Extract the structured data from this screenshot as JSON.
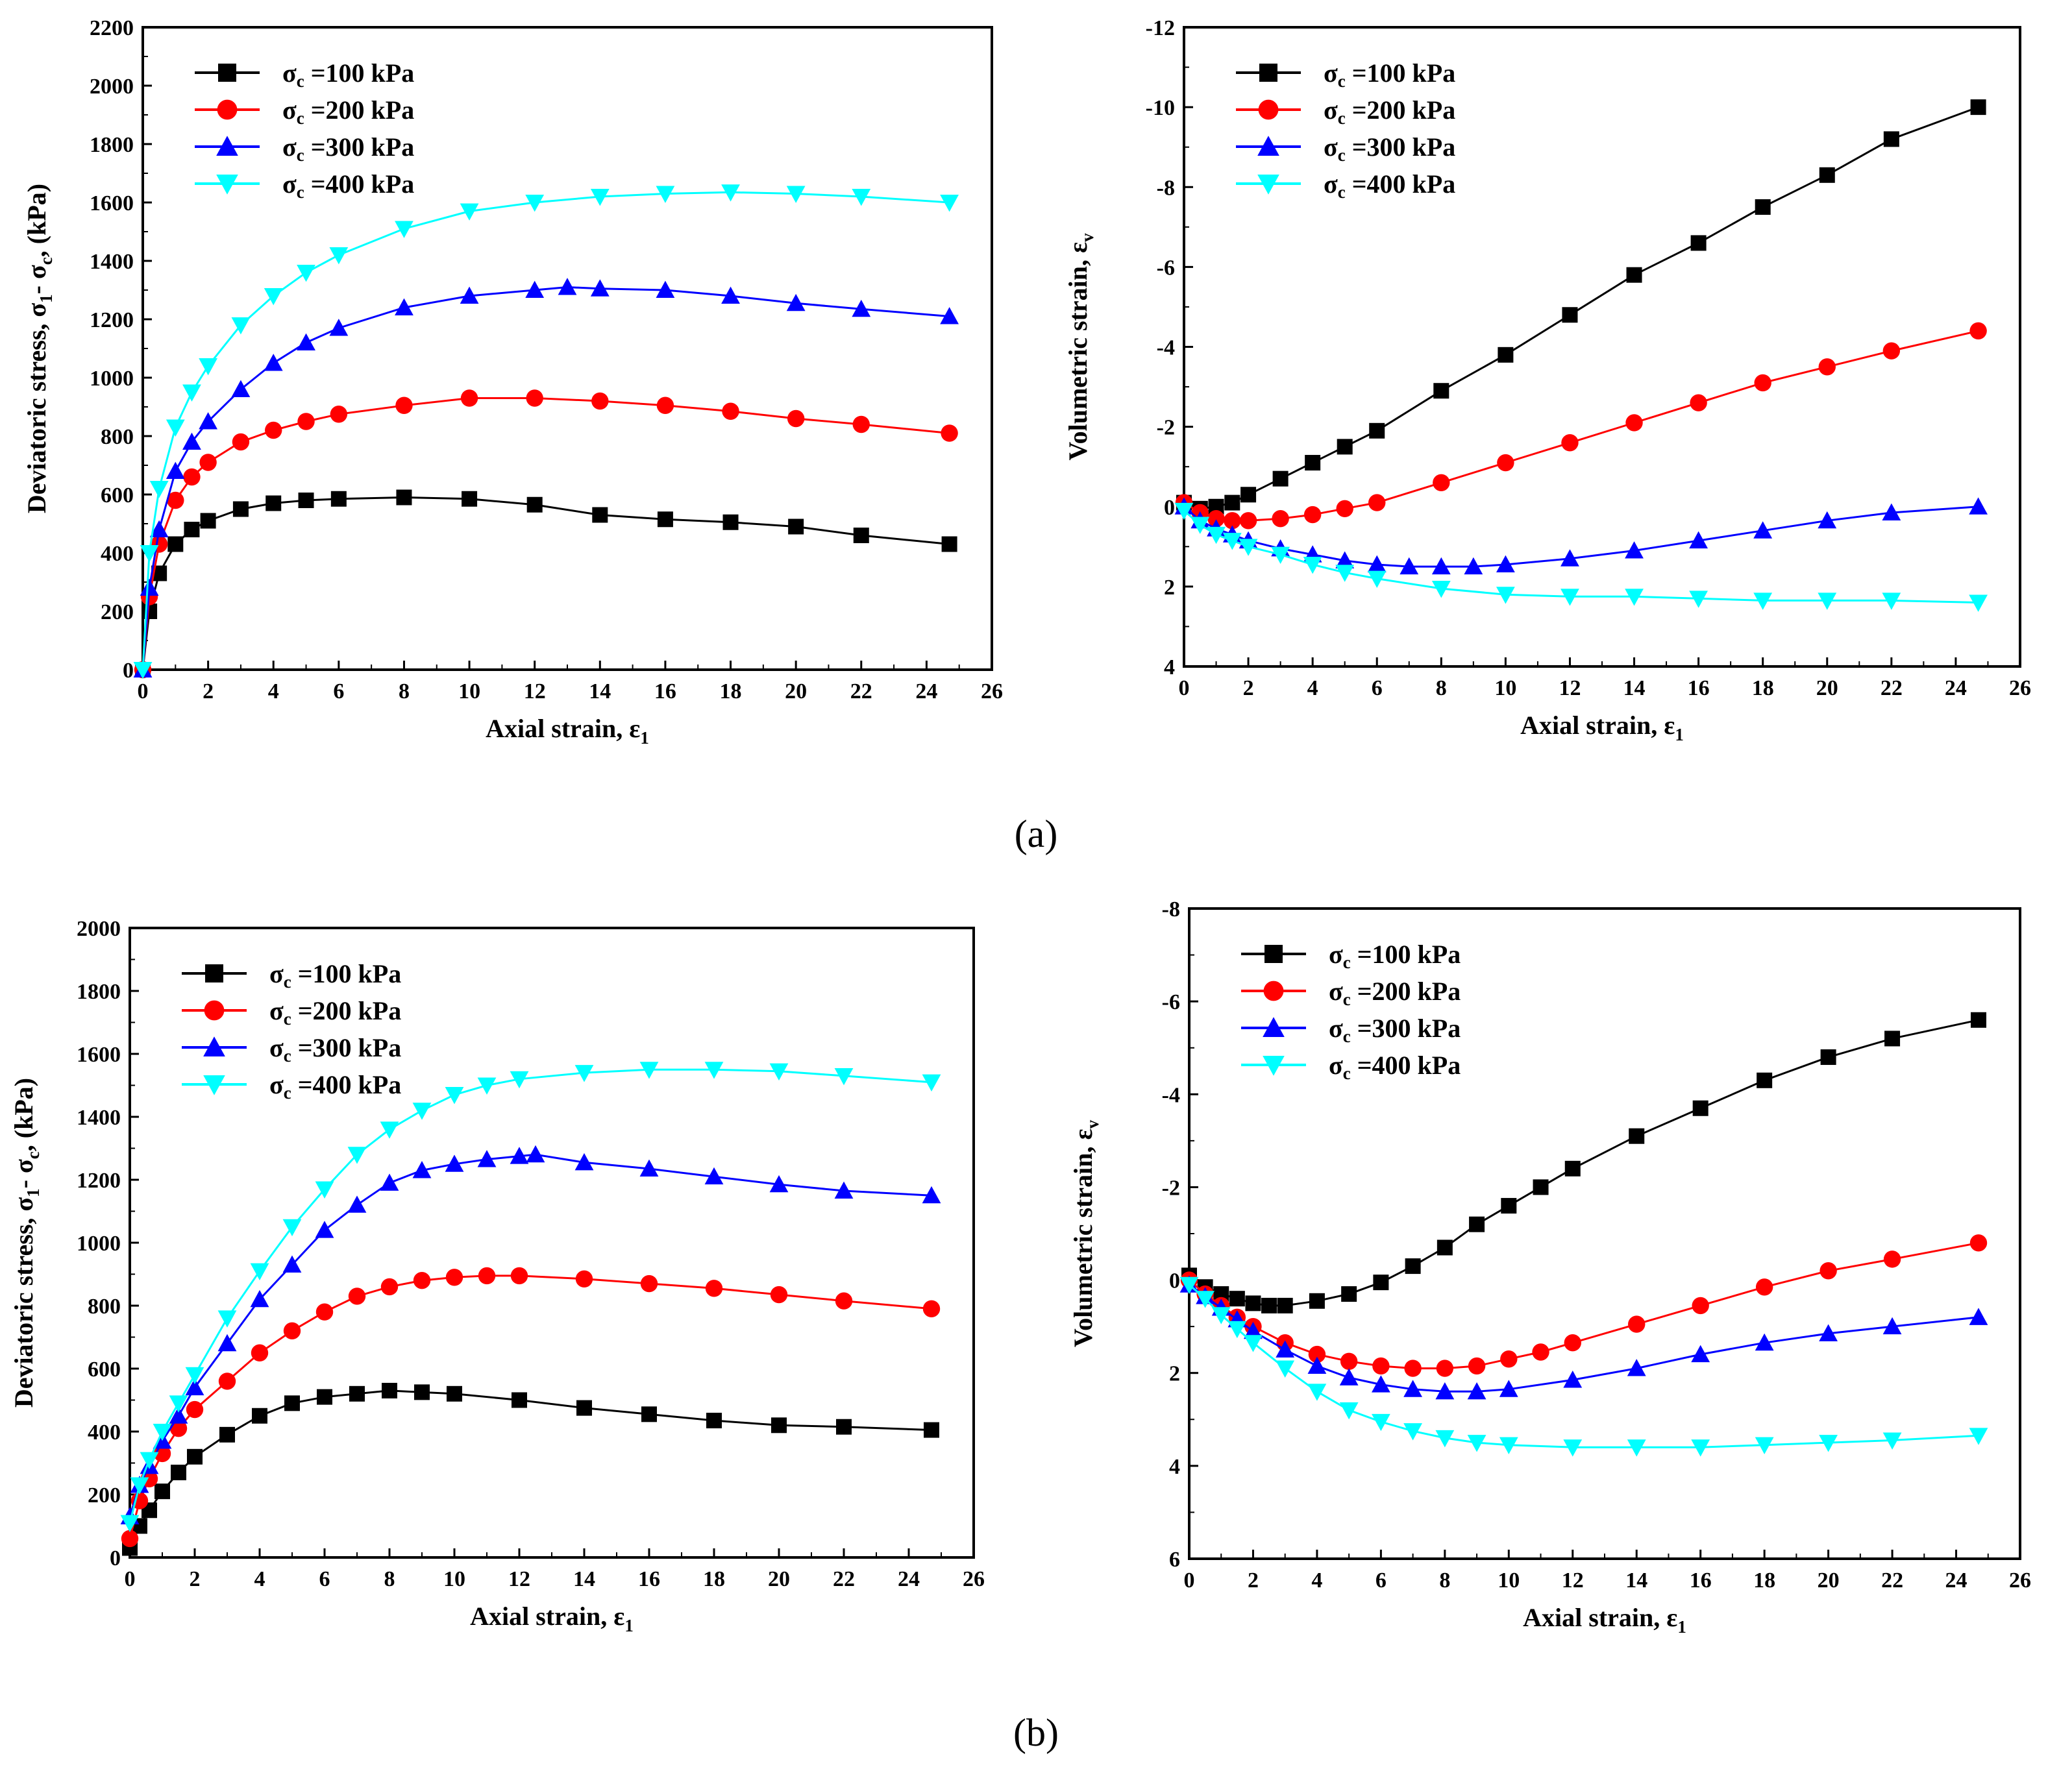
{
  "figure": {
    "captions": [
      "(a)",
      "(b)"
    ],
    "legend_symbol": "σ",
    "legend_subscript": "c",
    "legend_unit": "kPa",
    "series_colors": [
      "#000000",
      "#ff0000",
      "#0000ff",
      "#00ffff"
    ],
    "marker_shapes": [
      "square",
      "circle",
      "triangle-up",
      "triangle-down"
    ]
  },
  "chart_data": [
    {
      "id": "a-stress",
      "type": "line",
      "xlabel": "Axial strain, ε",
      "xlabel_sub": "1",
      "ylabel": "Deviatoric stress, σ",
      "ylabel_sub": "1",
      "ylabel_mid": "- σ",
      "ylabel_sub2": "c",
      "ylabel_tail": ",  (kPa)",
      "xlim": [
        0,
        26
      ],
      "ylim": [
        0,
        2200
      ],
      "xticks": [
        0,
        2,
        4,
        6,
        8,
        10,
        12,
        14,
        16,
        18,
        20,
        22,
        24,
        26
      ],
      "yticks": [
        0,
        200,
        400,
        600,
        800,
        1000,
        1200,
        1400,
        1600,
        1800,
        2000,
        2200
      ],
      "y_inverted": false,
      "legend_placement": "top-left",
      "series": [
        {
          "name": "σc =100 kPa",
          "legend_value": "=100 kPa",
          "color": "#000000",
          "marker": "square",
          "x": [
            0,
            0.2,
            0.5,
            1,
            1.5,
            2,
            3,
            4,
            5,
            6,
            8,
            10,
            12,
            14,
            16,
            18,
            20,
            22,
            24.7
          ],
          "values": [
            0,
            200,
            330,
            430,
            480,
            510,
            550,
            570,
            580,
            585,
            590,
            585,
            565,
            530,
            515,
            505,
            490,
            460,
            430
          ]
        },
        {
          "name": "σc =200 kPa",
          "legend_value": "=200 kPa",
          "color": "#ff0000",
          "marker": "circle",
          "x": [
            0,
            0.2,
            0.5,
            1,
            1.5,
            2,
            3,
            4,
            5,
            6,
            8,
            10,
            12,
            14,
            16,
            18,
            20,
            22,
            24.7
          ],
          "values": [
            0,
            250,
            430,
            580,
            660,
            710,
            780,
            820,
            850,
            875,
            905,
            930,
            930,
            920,
            905,
            885,
            860,
            840,
            810
          ]
        },
        {
          "name": "σc =300 kPa",
          "legend_value": "=300 kPa",
          "color": "#0000ff",
          "marker": "triangle-up",
          "x": [
            0,
            0.2,
            0.5,
            1,
            1.5,
            2,
            3,
            4,
            5,
            6,
            8,
            10,
            12,
            13,
            14,
            16,
            18,
            20,
            22,
            24.7
          ],
          "values": [
            0,
            280,
            480,
            680,
            780,
            850,
            960,
            1050,
            1120,
            1170,
            1240,
            1280,
            1300,
            1310,
            1305,
            1300,
            1280,
            1255,
            1235,
            1210
          ]
        },
        {
          "name": "σc =400 kPa",
          "legend_value": "=400 kPa",
          "color": "#00ffff",
          "marker": "triangle-down",
          "x": [
            0,
            0.2,
            0.5,
            1,
            1.5,
            2,
            3,
            4,
            5,
            6,
            8,
            10,
            12,
            14,
            16,
            18,
            20,
            22,
            24.7
          ],
          "values": [
            0,
            400,
            620,
            830,
            950,
            1040,
            1180,
            1280,
            1360,
            1420,
            1510,
            1570,
            1600,
            1620,
            1630,
            1635,
            1630,
            1620,
            1600
          ]
        }
      ]
    },
    {
      "id": "a-volumetric",
      "type": "line",
      "xlabel": "Axial strain, ε",
      "xlabel_sub": "1",
      "ylabel": "Volumetric strain, ε",
      "ylabel_sub": "v",
      "ylabel_mid": "",
      "ylabel_sub2": "",
      "ylabel_tail": "",
      "xlim": [
        0,
        26
      ],
      "ylim": [
        -12,
        4
      ],
      "xticks": [
        0,
        2,
        4,
        6,
        8,
        10,
        12,
        14,
        16,
        18,
        20,
        22,
        24,
        26
      ],
      "yticks": [
        -12,
        -10,
        -8,
        -6,
        -4,
        -2,
        0,
        2,
        4
      ],
      "y_inverted": true,
      "legend_placement": "top-left",
      "series": [
        {
          "name": "σc =100 kPa",
          "legend_value": "=100 kPa",
          "color": "#000000",
          "marker": "square",
          "x": [
            0,
            0.5,
            1,
            1.5,
            2,
            3,
            4,
            5,
            6,
            8,
            10,
            12,
            14,
            16,
            18,
            20,
            22,
            24.7
          ],
          "values": [
            -0.1,
            0.05,
            0.0,
            -0.1,
            -0.3,
            -0.7,
            -1.1,
            -1.5,
            -1.9,
            -2.9,
            -3.8,
            -4.8,
            -5.8,
            -6.6,
            -7.5,
            -8.3,
            -9.2,
            -10.0
          ]
        },
        {
          "name": "σc =200 kPa",
          "legend_value": "=200 kPa",
          "color": "#ff0000",
          "marker": "circle",
          "x": [
            0,
            0.5,
            1,
            1.5,
            2,
            3,
            4,
            5,
            6,
            8,
            10,
            12,
            14,
            16,
            18,
            20,
            22,
            24.7
          ],
          "values": [
            -0.1,
            0.15,
            0.3,
            0.35,
            0.35,
            0.3,
            0.2,
            0.05,
            -0.1,
            -0.6,
            -1.1,
            -1.6,
            -2.1,
            -2.6,
            -3.1,
            -3.5,
            -3.9,
            -4.4
          ]
        },
        {
          "name": "σc =300 kPa",
          "legend_value": "=300 kPa",
          "color": "#0000ff",
          "marker": "triangle-up",
          "x": [
            0,
            0.5,
            1,
            1.5,
            2,
            3,
            4,
            5,
            6,
            7,
            8,
            9,
            10,
            12,
            14,
            16,
            18,
            20,
            22,
            24.7
          ],
          "values": [
            0,
            0.35,
            0.55,
            0.7,
            0.85,
            1.05,
            1.2,
            1.35,
            1.45,
            1.5,
            1.5,
            1.5,
            1.45,
            1.3,
            1.1,
            0.85,
            0.6,
            0.35,
            0.15,
            0
          ]
        },
        {
          "name": "σc =400 kPa",
          "legend_value": "=400 kPa",
          "color": "#00ffff",
          "marker": "triangle-down",
          "x": [
            0,
            0.5,
            1,
            1.5,
            2,
            3,
            4,
            5,
            6,
            8,
            10,
            12,
            14,
            16,
            18,
            20,
            22,
            24.7
          ],
          "values": [
            0.1,
            0.45,
            0.7,
            0.85,
            1.0,
            1.2,
            1.45,
            1.65,
            1.8,
            2.05,
            2.2,
            2.25,
            2.25,
            2.3,
            2.35,
            2.35,
            2.35,
            2.4
          ]
        }
      ]
    },
    {
      "id": "b-stress",
      "type": "line",
      "xlabel": "Axial strain, ε",
      "xlabel_sub": "1",
      "ylabel": "Deviatoric stress, σ",
      "ylabel_sub": "1",
      "ylabel_mid": "- σ",
      "ylabel_sub2": "c",
      "ylabel_tail": ",  (kPa)",
      "xlim": [
        0,
        26
      ],
      "ylim": [
        0,
        2000
      ],
      "xticks": [
        0,
        2,
        4,
        6,
        8,
        10,
        12,
        14,
        16,
        18,
        20,
        22,
        24,
        26
      ],
      "yticks": [
        0,
        200,
        400,
        600,
        800,
        1000,
        1200,
        1400,
        1600,
        1800,
        2000
      ],
      "y_inverted": false,
      "legend_placement": "top-left",
      "series": [
        {
          "name": "σc =100 kPa",
          "legend_value": "=100 kPa",
          "color": "#000000",
          "marker": "square",
          "x": [
            0,
            0.3,
            0.6,
            1,
            1.5,
            2,
            3,
            4,
            5,
            6,
            7,
            8,
            9,
            10,
            12,
            14,
            16,
            18,
            20,
            22,
            24.7
          ],
          "values": [
            30,
            100,
            150,
            210,
            270,
            320,
            390,
            450,
            490,
            510,
            520,
            530,
            525,
            520,
            500,
            475,
            455,
            435,
            420,
            415,
            405
          ]
        },
        {
          "name": "σc =200 kPa",
          "legend_value": "=200 kPa",
          "color": "#ff0000",
          "marker": "circle",
          "x": [
            0,
            0.3,
            0.6,
            1,
            1.5,
            2,
            3,
            4,
            5,
            6,
            7,
            8,
            9,
            10,
            11,
            12,
            14,
            16,
            18,
            20,
            22,
            24.7
          ],
          "values": [
            60,
            180,
            250,
            330,
            410,
            470,
            560,
            650,
            720,
            780,
            830,
            860,
            880,
            890,
            895,
            895,
            885,
            870,
            855,
            835,
            815,
            790
          ]
        },
        {
          "name": "σc =300 kPa",
          "legend_value": "=300 kPa",
          "color": "#0000ff",
          "marker": "triangle-up",
          "x": [
            0,
            0.3,
            0.6,
            1,
            1.5,
            2,
            3,
            4,
            5,
            6,
            7,
            8,
            9,
            10,
            11,
            12,
            12.5,
            14,
            16,
            18,
            20,
            22,
            24.7
          ],
          "values": [
            130,
            230,
            290,
            370,
            450,
            540,
            680,
            820,
            930,
            1040,
            1120,
            1190,
            1230,
            1250,
            1265,
            1275,
            1280,
            1255,
            1235,
            1210,
            1185,
            1165,
            1150
          ]
        },
        {
          "name": "σc =400 kPa",
          "legend_value": "=400 kPa",
          "color": "#00ffff",
          "marker": "triangle-down",
          "x": [
            0,
            0.3,
            0.6,
            1,
            1.5,
            2,
            3,
            4,
            5,
            6,
            7,
            8,
            9,
            10,
            11,
            12,
            14,
            16,
            18,
            20,
            22,
            24.7
          ],
          "values": [
            110,
            230,
            310,
            400,
            490,
            580,
            760,
            910,
            1050,
            1170,
            1280,
            1360,
            1420,
            1470,
            1500,
            1520,
            1540,
            1550,
            1550,
            1545,
            1530,
            1510
          ]
        }
      ]
    },
    {
      "id": "b-volumetric",
      "type": "line",
      "xlabel": "Axial strain, ε",
      "xlabel_sub": "1",
      "ylabel": "Volumetric strain, ε",
      "ylabel_sub": "v",
      "ylabel_mid": "",
      "ylabel_sub2": "",
      "ylabel_tail": "",
      "xlim": [
        0,
        26
      ],
      "ylim": [
        -8,
        6
      ],
      "xticks": [
        0,
        2,
        4,
        6,
        8,
        10,
        12,
        14,
        16,
        18,
        20,
        22,
        24,
        26
      ],
      "yticks": [
        -8,
        -6,
        -4,
        -2,
        0,
        2,
        4,
        6
      ],
      "y_inverted": true,
      "legend_placement": "top-left",
      "series": [
        {
          "name": "σc =100 kPa",
          "legend_value": "=100 kPa",
          "color": "#000000",
          "marker": "square",
          "x": [
            0,
            0.5,
            1,
            1.5,
            2,
            2.5,
            3,
            4,
            5,
            6,
            7,
            8,
            9,
            10,
            11,
            12,
            14,
            16,
            18,
            20,
            22,
            24.7
          ],
          "values": [
            -0.1,
            0.15,
            0.3,
            0.4,
            0.5,
            0.55,
            0.55,
            0.45,
            0.3,
            0.05,
            -0.3,
            -0.7,
            -1.2,
            -1.6,
            -2.0,
            -2.4,
            -3.1,
            -3.7,
            -4.3,
            -4.8,
            -5.2,
            -5.6
          ]
        },
        {
          "name": "σc =200 kPa",
          "legend_value": "=200 kPa",
          "color": "#ff0000",
          "marker": "circle",
          "x": [
            0,
            0.5,
            1,
            1.5,
            2,
            3,
            4,
            5,
            6,
            7,
            8,
            9,
            10,
            11,
            12,
            14,
            16,
            18,
            20,
            22,
            24.7
          ],
          "values": [
            0,
            0.3,
            0.55,
            0.8,
            1.0,
            1.35,
            1.6,
            1.75,
            1.85,
            1.9,
            1.9,
            1.85,
            1.7,
            1.55,
            1.35,
            0.95,
            0.55,
            0.15,
            -0.2,
            -0.45,
            -0.8
          ]
        },
        {
          "name": "σc =300 kPa",
          "legend_value": "=300 kPa",
          "color": "#0000ff",
          "marker": "triangle-up",
          "x": [
            0,
            0.5,
            1,
            1.5,
            2,
            3,
            4,
            5,
            6,
            7,
            8,
            9,
            10,
            12,
            14,
            16,
            18,
            20,
            22,
            24.7
          ],
          "values": [
            0.1,
            0.35,
            0.6,
            0.85,
            1.1,
            1.5,
            1.85,
            2.1,
            2.25,
            2.35,
            2.4,
            2.4,
            2.35,
            2.15,
            1.9,
            1.6,
            1.35,
            1.15,
            1.0,
            0.8
          ]
        },
        {
          "name": "σc =400 kPa",
          "legend_value": "=400 kPa",
          "color": "#00ffff",
          "marker": "triangle-down",
          "x": [
            0,
            0.5,
            1,
            1.5,
            2,
            3,
            4,
            5,
            6,
            7,
            8,
            9,
            10,
            12,
            14,
            16,
            18,
            20,
            22,
            24.7
          ],
          "values": [
            0.1,
            0.4,
            0.75,
            1.05,
            1.35,
            1.9,
            2.4,
            2.8,
            3.05,
            3.25,
            3.4,
            3.5,
            3.55,
            3.6,
            3.6,
            3.6,
            3.55,
            3.5,
            3.45,
            3.35
          ]
        }
      ]
    }
  ]
}
